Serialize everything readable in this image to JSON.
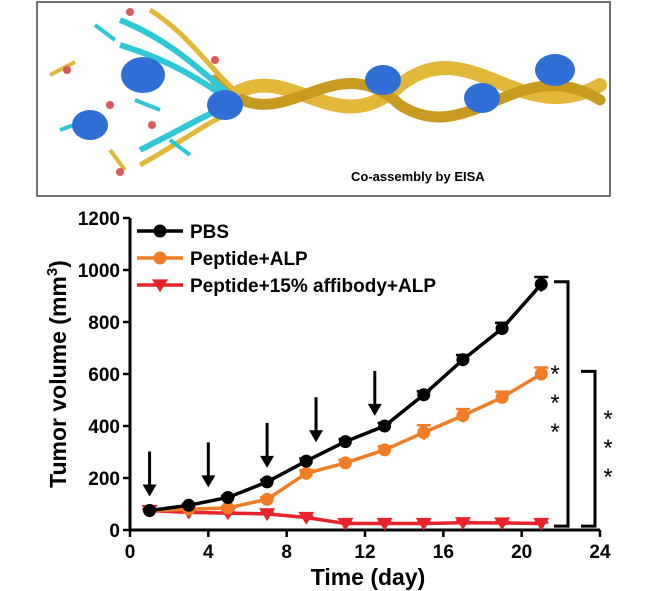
{
  "schematic": {
    "caption": "Co-assembly by EISA",
    "colors": {
      "helix": "#e1b83a",
      "peptide": "#2fc8d8",
      "protein": "#2f6fd6",
      "dot": "#d9595e"
    }
  },
  "chart_data": {
    "type": "line",
    "title": "",
    "xlabel": "Time (day)",
    "ylabel": "Tumor volume (mm",
    "ylabel_sup": "3",
    "ylabel_close": ")",
    "xlim": [
      0,
      24
    ],
    "ylim": [
      0,
      1200
    ],
    "xticks": [
      0,
      4,
      8,
      12,
      16,
      20,
      24
    ],
    "yticks": [
      0,
      200,
      400,
      600,
      800,
      1000,
      1200
    ],
    "grid": false,
    "legend_position": "top-left",
    "series": [
      {
        "name": "PBS",
        "color": "#000000",
        "marker": "circle",
        "x": [
          1,
          3,
          5,
          7,
          9,
          11,
          13,
          15,
          17,
          19,
          21
        ],
        "y": [
          75,
          95,
          125,
          185,
          265,
          340,
          400,
          520,
          655,
          775,
          945
        ],
        "err": [
          5,
          5,
          6,
          8,
          10,
          10,
          12,
          14,
          18,
          22,
          28
        ]
      },
      {
        "name": "Peptide+ALP",
        "color": "#f07d25",
        "marker": "circle",
        "x": [
          1,
          3,
          5,
          7,
          9,
          11,
          13,
          15,
          17,
          19,
          21
        ],
        "y": [
          75,
          80,
          85,
          118,
          218,
          258,
          308,
          375,
          440,
          510,
          600
        ],
        "err": [
          5,
          5,
          5,
          8,
          12,
          12,
          14,
          28,
          25,
          22,
          25
        ]
      },
      {
        "name": "Peptide+15% affibody+ALP",
        "color": "#e8242a",
        "marker": "triangle-down",
        "x": [
          1,
          3,
          5,
          7,
          9,
          11,
          13,
          15,
          17,
          19,
          21
        ],
        "y": [
          75,
          68,
          65,
          62,
          48,
          25,
          25,
          25,
          28,
          27,
          25
        ],
        "err": [
          4,
          4,
          4,
          4,
          4,
          4,
          4,
          4,
          4,
          4,
          4
        ]
      }
    ],
    "injection_days": [
      1,
      4,
      7,
      9.5,
      12.5
    ],
    "significance": [
      {
        "label": "***",
        "from_series": "PBS",
        "to_series": "Peptide+15% affibody+ALP"
      },
      {
        "label": "***",
        "from_series": "Peptide+ALP",
        "to_series": "Peptide+15% affibody+ALP"
      }
    ]
  }
}
